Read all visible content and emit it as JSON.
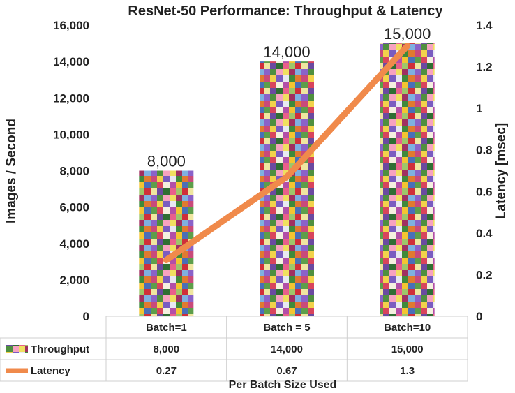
{
  "chart_data": {
    "type": "bar",
    "title": "ResNet-50 Performance: Throughput & Latency",
    "xlabel": "Per Batch Size Used",
    "ylabel": "Images / Second",
    "y2label": "Latency  [msec]",
    "categories": [
      "Batch=1",
      "Batch = 5",
      "Batch=10"
    ],
    "ylim": [
      0,
      16000
    ],
    "y2lim": [
      0,
      1.4
    ],
    "yticks": [
      "0",
      "2,000",
      "4,000",
      "6,000",
      "8,000",
      "10,000",
      "12,000",
      "14,000",
      "16,000"
    ],
    "y2ticks": [
      "0",
      "0.2",
      "0.4",
      "0.6",
      "0.8",
      "1",
      "1.2",
      "1.4"
    ],
    "series": [
      {
        "name": "Throughput",
        "type": "bar",
        "axis": "left",
        "values": [
          8000,
          14000,
          15000
        ],
        "data_labels": [
          "8,000",
          "14,000",
          "15,000"
        ],
        "fill": "image mosaic of flower photos"
      },
      {
        "name": "Latency",
        "type": "line",
        "axis": "right",
        "color": "#F08A4B",
        "values": [
          0.27,
          0.67,
          1.3
        ]
      }
    ],
    "data_table": {
      "rows": [
        {
          "label": "Throughput",
          "values": [
            "8,000",
            "14,000",
            "15,000"
          ]
        },
        {
          "label": "Latency",
          "values": [
            "0.27",
            "0.67",
            "1.3"
          ]
        }
      ]
    },
    "grid": false,
    "legend": "data table"
  }
}
